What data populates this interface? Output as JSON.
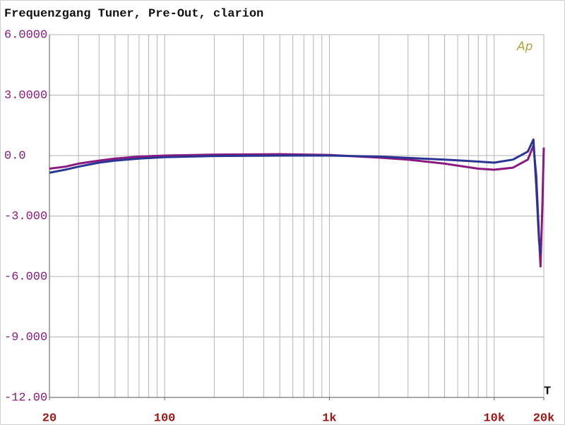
{
  "chart_data": {
    "type": "line",
    "title": "Frequenzgang Tuner, Pre-Out, clarion",
    "logo": "Ap",
    "marker": "T",
    "xscale": "log",
    "xlim": [
      20,
      20000
    ],
    "xticks": [
      20,
      100,
      {
        "value": 1000,
        "label": "1k"
      },
      {
        "value": 10000,
        "label": "10k"
      },
      {
        "value": 20000,
        "label": "20k"
      }
    ],
    "xgrid": [
      20,
      30,
      40,
      50,
      60,
      70,
      80,
      90,
      100,
      200,
      300,
      400,
      500,
      600,
      700,
      800,
      900,
      1000,
      2000,
      3000,
      4000,
      5000,
      6000,
      7000,
      8000,
      9000,
      10000,
      20000
    ],
    "ylim": [
      -12,
      6
    ],
    "yticks": [
      {
        "value": 6,
        "label": "6.0000"
      },
      {
        "value": 3,
        "label": "3.0000"
      },
      {
        "value": 0,
        "label": "0.0"
      },
      {
        "value": -3,
        "label": "-3.000"
      },
      {
        "value": -6,
        "label": "-6.000"
      },
      {
        "value": -9,
        "label": "-9.000"
      },
      {
        "value": -12,
        "label": "-12.00"
      }
    ],
    "grid": true,
    "series": [
      {
        "color": "#8a1a80",
        "x": [
          20,
          25,
          30,
          40,
          50,
          70,
          100,
          200,
          500,
          1000,
          2000,
          3000,
          5000,
          8000,
          10000,
          13000,
          16000,
          17300,
          18000,
          18700,
          19100,
          19600,
          20000
        ],
        "values": [
          -0.65,
          -0.55,
          -0.4,
          -0.25,
          -0.15,
          -0.05,
          0,
          0.05,
          0.07,
          0.03,
          -0.1,
          -0.2,
          -0.4,
          -0.65,
          -0.7,
          -0.6,
          -0.2,
          0.5,
          -1,
          -4,
          -5.5,
          -2.5,
          0.4
        ]
      },
      {
        "color": "#2a3592",
        "x": [
          20,
          25,
          30,
          40,
          50,
          70,
          100,
          200,
          500,
          1000,
          2000,
          5000,
          8000,
          10000,
          13000,
          16000,
          17300,
          18000,
          18700,
          19100
        ],
        "values": [
          -0.85,
          -0.7,
          -0.55,
          -0.35,
          -0.25,
          -0.15,
          -0.08,
          -0.02,
          0,
          0,
          -0.05,
          -0.2,
          -0.3,
          -0.35,
          -0.2,
          0.2,
          0.8,
          -1.5,
          -4.2,
          -4.9
        ]
      }
    ]
  }
}
